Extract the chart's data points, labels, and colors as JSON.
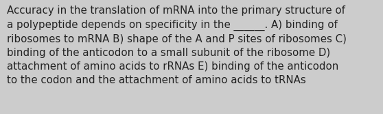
{
  "background_color": "#cccccc",
  "text_color": "#222222",
  "text": "Accuracy in the translation of mRNA into the primary structure of\na polypeptide depends on specificity in the ______. A) binding of\nribosomes to mRNA B) shape of the A and P sites of ribosomes C)\nbinding of the anticodon to a small subunit of the ribosome D)\nattachment of amino acids to rRNAs E) binding of the anticodon\nto the codon and the attachment of amino acids to tRNAs",
  "font_size": 10.8,
  "font_family": "DejaVu Sans",
  "fig_width": 5.58,
  "fig_height": 1.67,
  "dpi": 100
}
